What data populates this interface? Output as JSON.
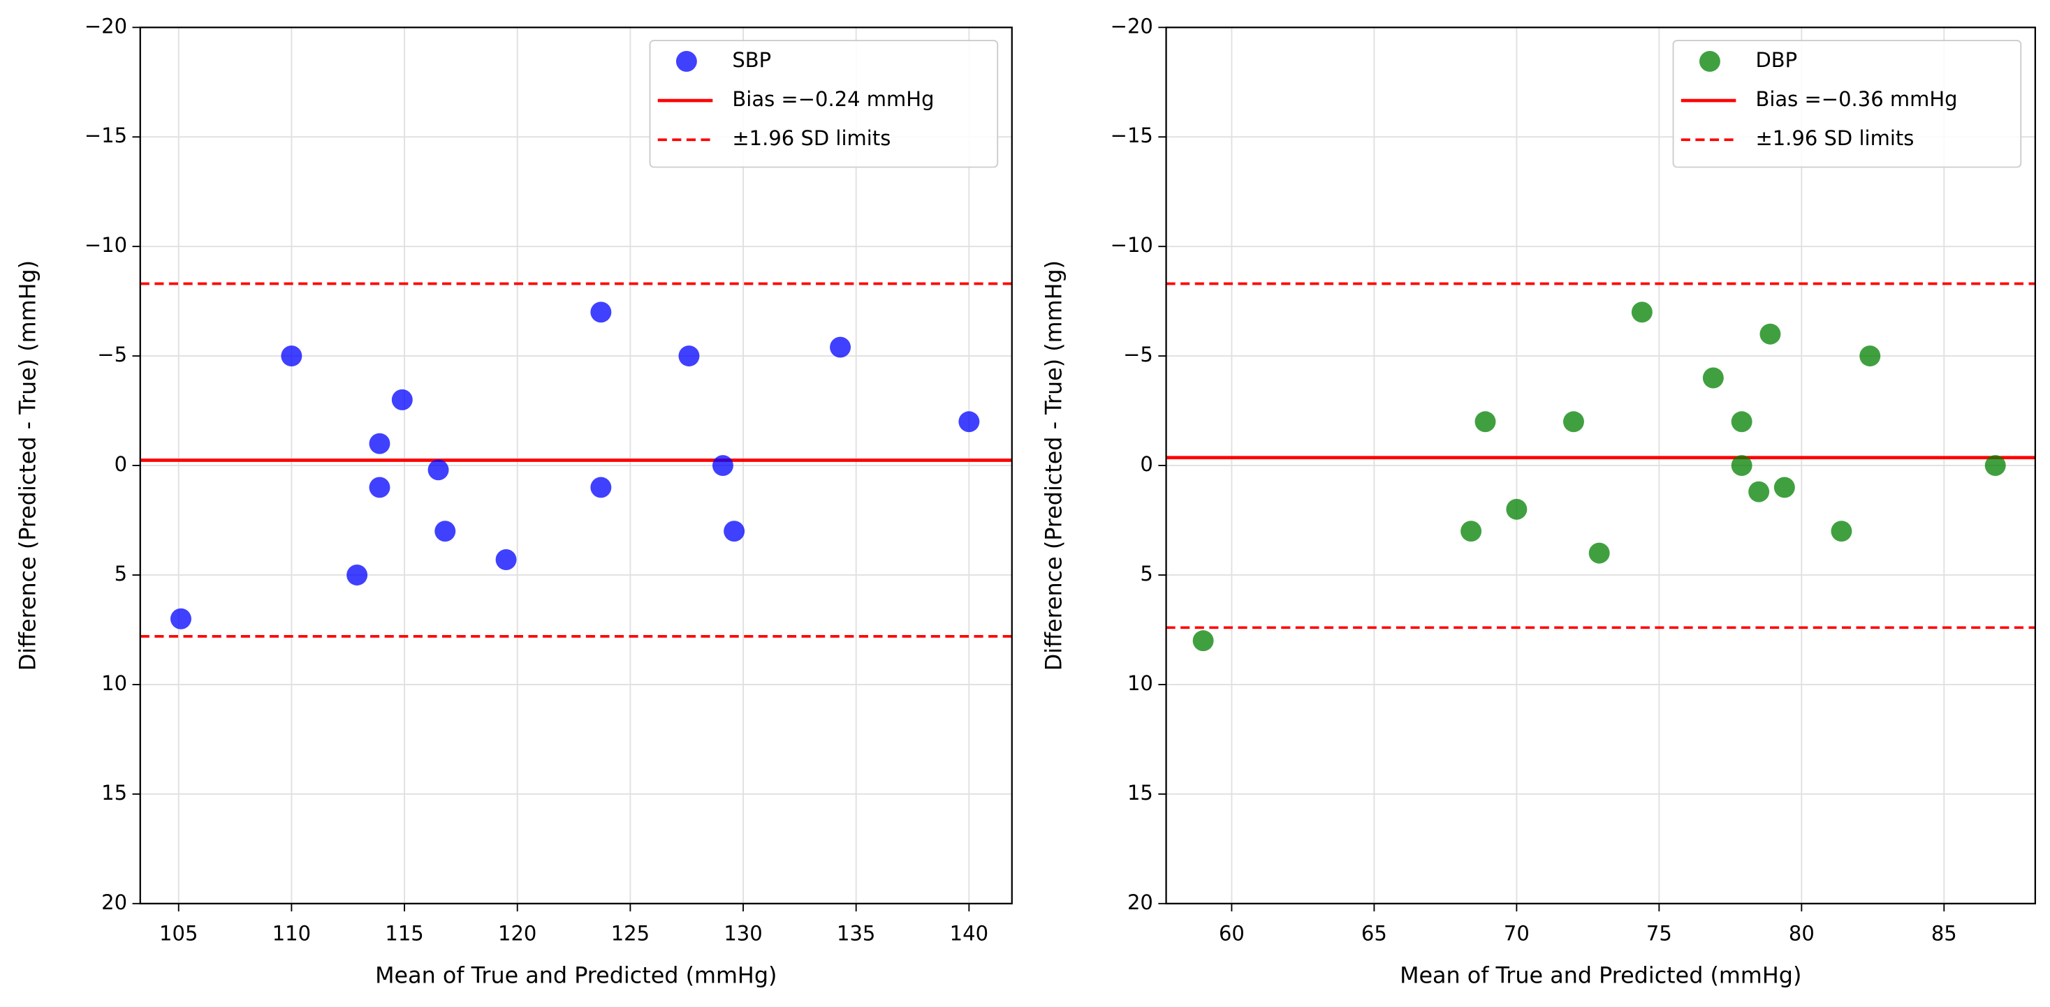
{
  "chart_data": [
    {
      "type": "scatter",
      "xlabel": "Mean of True and Predicted (mmHg)",
      "ylabel": "Difference (Predicted - True) (mmHg)",
      "xlim": [
        103.3,
        141.9
      ],
      "xticks": [
        105,
        110,
        115,
        120,
        125,
        130,
        135,
        140
      ],
      "ylim": [
        -20,
        20
      ],
      "y_inverted": true,
      "yticks": [
        {
          "value": -20,
          "label": "−20"
        },
        {
          "value": -15,
          "label": "−15"
        },
        {
          "value": -10,
          "label": "−10"
        },
        {
          "value": -5,
          "label": "−5"
        },
        0,
        5,
        10,
        15,
        20
      ],
      "grid": true,
      "legend": "upper right",
      "series": [
        {
          "name": "SBP",
          "color": "#0000ff",
          "x": [
            105.1,
            110.0,
            112.9,
            113.9,
            113.9,
            114.9,
            116.5,
            116.8,
            119.5,
            123.7,
            123.7,
            127.6,
            129.1,
            129.6,
            134.3,
            140.0
          ],
          "values": [
            7,
            -5,
            5,
            -1,
            1,
            -3,
            0.2,
            3,
            4.3,
            -7,
            1,
            -5,
            0,
            3,
            -5.4,
            -2
          ]
        }
      ],
      "bias": {
        "name": "Bias =−0.24 mmHg",
        "value": -0.24,
        "color": "#ff0000"
      },
      "limits": {
        "name": "±1.96 SD limits",
        "values": [
          -8.3,
          7.8
        ],
        "color": "#ff0000"
      }
    },
    {
      "type": "scatter",
      "xlabel": "Mean of True and Predicted (mmHg)",
      "ylabel": "Difference (Predicted - True) (mmHg)",
      "xlim": [
        57.7,
        88.2
      ],
      "xticks": [
        60,
        65,
        70,
        75,
        80,
        85
      ],
      "ylim": [
        -20,
        20
      ],
      "y_inverted": true,
      "yticks": [
        {
          "value": -20,
          "label": "−20"
        },
        {
          "value": -15,
          "label": "−15"
        },
        {
          "value": -10,
          "label": "−10"
        },
        {
          "value": -5,
          "label": "−5"
        },
        0,
        5,
        10,
        15,
        20
      ],
      "grid": true,
      "legend": "upper right",
      "series": [
        {
          "name": "DBP",
          "color": "#008000",
          "x": [
            59.0,
            68.4,
            68.9,
            70.0,
            72.0,
            72.9,
            74.4,
            76.9,
            77.9,
            77.9,
            78.5,
            78.9,
            79.4,
            81.4,
            82.4,
            86.8
          ],
          "values": [
            8,
            3,
            -2,
            2,
            -2,
            4,
            -7,
            -4,
            -2,
            0,
            1.2,
            -6,
            1,
            3,
            -5,
            0
          ]
        }
      ],
      "bias": {
        "name": "Bias =−0.36 mmHg",
        "value": -0.36,
        "color": "#ff0000"
      },
      "limits": {
        "name": "±1.96 SD limits",
        "values": [
          -8.3,
          7.4
        ],
        "color": "#ff0000"
      }
    }
  ]
}
